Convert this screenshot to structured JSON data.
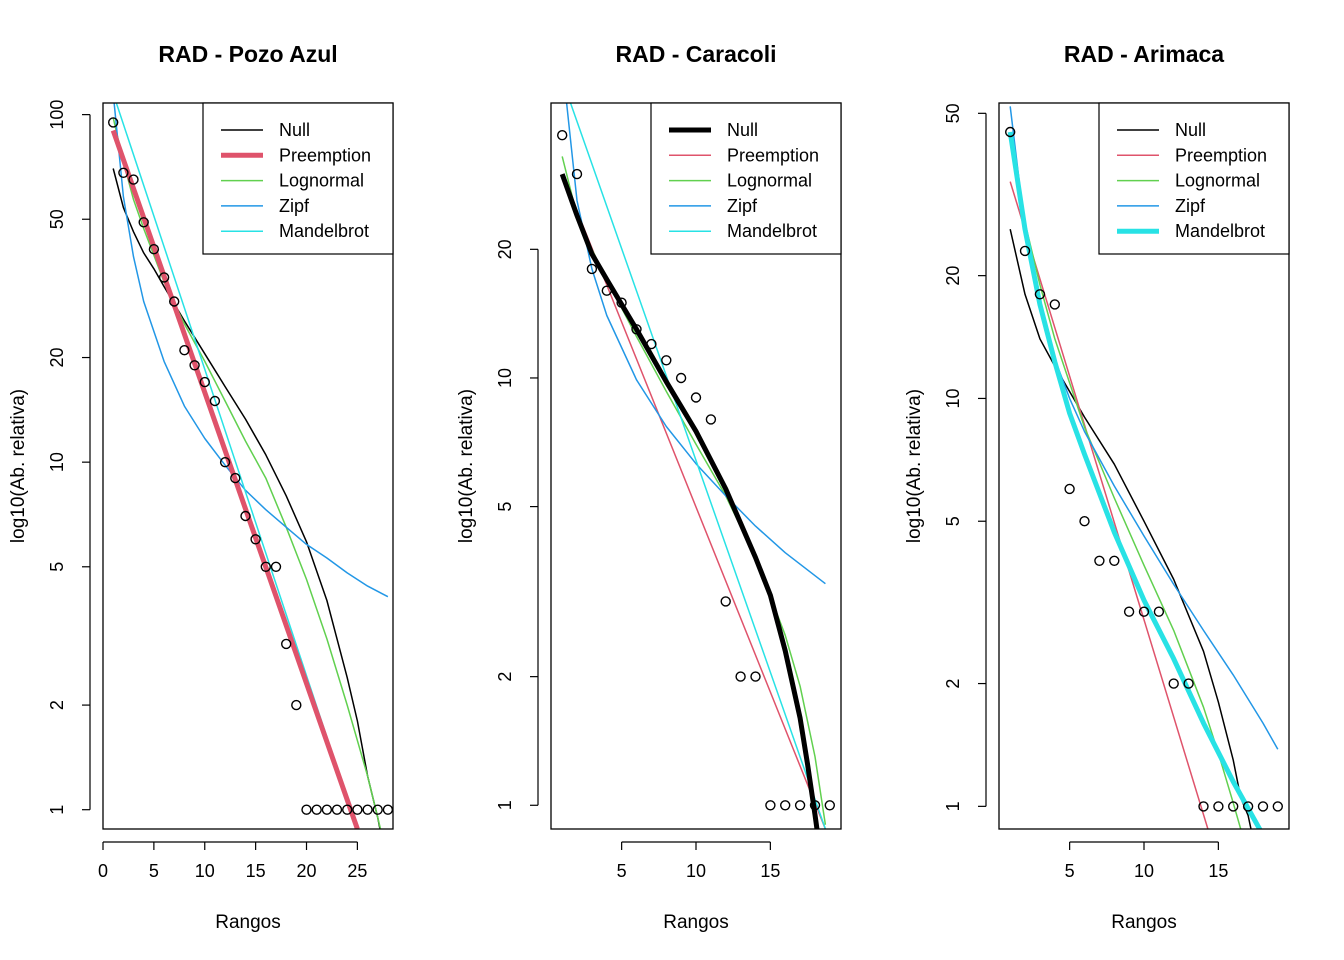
{
  "figure": {
    "legend_entries": [
      {
        "key": "null",
        "label": "Null",
        "color": "#000000"
      },
      {
        "key": "preemption",
        "label": "Preemption",
        "color": "#DF536B"
      },
      {
        "key": "lognormal",
        "label": "Lognormal",
        "color": "#61D04F"
      },
      {
        "key": "zipf",
        "label": "Zipf",
        "color": "#2297E6"
      },
      {
        "key": "mandelbrot",
        "label": "Mandelbrot",
        "color": "#28E2E5"
      }
    ],
    "point_style": "open-circle"
  },
  "chart_data": [
    {
      "type": "scatter",
      "title": "RAD - Pozo Azul",
      "xlabel": "Rangos",
      "ylabel": "log10(Ab. relativa)",
      "y_scale": "log",
      "xlim": [
        0,
        28.5
      ],
      "ylim": [
        0.88,
        108
      ],
      "xticks": [
        0,
        5,
        10,
        15,
        20,
        25
      ],
      "yticks": [
        1,
        2,
        5,
        10,
        20,
        50,
        100
      ],
      "legend_position": "top-right",
      "highlight": "preemption",
      "points": {
        "x": [
          1,
          2,
          3,
          4,
          5,
          6,
          7,
          8,
          9,
          10,
          11,
          12,
          13,
          14,
          15,
          16,
          17,
          18,
          19,
          20,
          21,
          22,
          23,
          24,
          25,
          26,
          27,
          28
        ],
        "y": [
          95,
          68,
          65,
          49,
          41,
          34,
          29,
          21,
          19,
          17,
          15,
          10,
          9,
          7,
          6,
          5,
          5,
          3,
          2,
          1,
          1,
          1,
          1,
          1,
          1,
          1,
          1,
          1
        ]
      },
      "curves": {
        "null": {
          "x": [
            1,
            2,
            3,
            4,
            5,
            6,
            8,
            10,
            12,
            14,
            16,
            18,
            20,
            22,
            24,
            25,
            26,
            27,
            27.5,
            28
          ],
          "y": [
            70,
            54,
            46,
            40,
            36,
            32,
            25.5,
            20.5,
            16.5,
            13.3,
            10.5,
            8,
            5.9,
            4,
            2.4,
            1.8,
            1.25,
            0.95,
            0.8,
            0.68
          ]
        },
        "preemption": {
          "x": [
            1,
            25
          ],
          "y": [
            90,
            0.88
          ]
        },
        "lognormal": {
          "x": [
            1,
            2,
            3,
            4,
            6,
            8,
            10,
            12,
            14,
            16,
            18,
            20,
            22,
            24,
            26,
            27,
            28
          ],
          "y": [
            98,
            73,
            57,
            47,
            33,
            25,
            19.5,
            15,
            11.5,
            9,
            6.5,
            4.6,
            3.1,
            2,
            1.25,
            0.95,
            0.72
          ]
        },
        "zipf": {
          "x": [
            1,
            2,
            3,
            4,
            6,
            8,
            10,
            12,
            14,
            16,
            18,
            20,
            22,
            24,
            26,
            28
          ],
          "y": [
            115,
            58,
            39,
            29,
            19.5,
            14.5,
            11.7,
            9.8,
            8.3,
            7.3,
            6.5,
            5.8,
            5.3,
            4.8,
            4.4,
            4.1
          ]
        },
        "mandelbrot": {
          "x": [
            1,
            25
          ],
          "y": [
            115,
            0.88
          ]
        }
      }
    },
    {
      "type": "scatter",
      "title": "RAD - Caracoli",
      "xlabel": "Rangos",
      "ylabel": "log10(Ab. relativa)",
      "y_scale": "log",
      "xlim": [
        0.25,
        19.75
      ],
      "ylim": [
        0.88,
        44
      ],
      "xticks": [
        5,
        10,
        15
      ],
      "yticks": [
        1,
        2,
        5,
        10,
        20
      ],
      "legend_position": "top-right",
      "highlight": "null",
      "points": {
        "x": [
          1,
          2,
          3,
          4,
          5,
          6,
          7,
          8,
          9,
          10,
          11,
          12,
          13,
          14,
          15,
          16,
          17,
          18,
          19
        ],
        "y": [
          37,
          30,
          18,
          16,
          15,
          13,
          12,
          11,
          10,
          9,
          8,
          3,
          2,
          2,
          1,
          1,
          1,
          1,
          1
        ]
      },
      "curves": {
        "null": {
          "x": [
            1,
            2,
            3,
            4,
            6,
            8,
            10,
            12,
            14,
            15,
            16,
            17,
            17.5,
            18,
            18.3,
            18.5
          ],
          "y": [
            30,
            24,
            19.5,
            17,
            13,
            9.8,
            7.5,
            5.5,
            3.8,
            3.1,
            2.3,
            1.6,
            1.25,
            0.95,
            0.8,
            0.68
          ]
        },
        "preemption": {
          "x": [
            1,
            18.7
          ],
          "y": [
            30,
            0.88
          ]
        },
        "lognormal": {
          "x": [
            1,
            2,
            3,
            4,
            6,
            8,
            10,
            12,
            14,
            16,
            17,
            18,
            18.7
          ],
          "y": [
            33,
            24,
            20,
            17,
            12.5,
            9.3,
            7,
            5.3,
            3.8,
            2.5,
            1.9,
            1.3,
            0.9
          ]
        },
        "zipf": {
          "x": [
            1,
            2,
            3,
            4,
            6,
            8,
            10,
            12,
            14,
            16,
            18.7
          ],
          "y": [
            55,
            26,
            18,
            14,
            9.9,
            7.7,
            6.3,
            5.3,
            4.5,
            3.9,
            3.3
          ]
        },
        "mandelbrot": {
          "x": [
            1,
            18.7
          ],
          "y": [
            50,
            0.88
          ]
        }
      }
    },
    {
      "type": "scatter",
      "title": "RAD - Arimaca",
      "xlabel": "Rangos",
      "ylabel": "log10(Ab. relativa)",
      "y_scale": "log",
      "xlim": [
        0.25,
        19.75
      ],
      "ylim": [
        0.88,
        53
      ],
      "xticks": [
        5,
        10,
        15
      ],
      "yticks": [
        1,
        2,
        5,
        10,
        20,
        50
      ],
      "legend_position": "top-right",
      "highlight": "mandelbrot",
      "points": {
        "x": [
          1,
          2,
          3,
          4,
          5,
          6,
          7,
          8,
          9,
          10,
          11,
          12,
          13,
          14,
          15,
          16,
          17,
          18,
          19
        ],
        "y": [
          45,
          23,
          18,
          17,
          6,
          5,
          4,
          4,
          3,
          3,
          3,
          2,
          2,
          1,
          1,
          1,
          1,
          1,
          1
        ]
      },
      "curves": {
        "null": {
          "x": [
            1,
            2,
            3,
            4,
            6,
            8,
            10,
            12,
            14,
            15,
            16,
            16.5,
            17,
            17.5,
            18
          ],
          "y": [
            26,
            18,
            14,
            12,
            9,
            6.9,
            5,
            3.6,
            2.4,
            1.8,
            1.3,
            1.05,
            0.95,
            0.78,
            0.66
          ]
        },
        "preemption": {
          "x": [
            1,
            14.3
          ],
          "y": [
            34,
            0.88
          ]
        },
        "lognormal": {
          "x": [
            1,
            2,
            3,
            4,
            6,
            8,
            10,
            12,
            14,
            15,
            16,
            16.5
          ],
          "y": [
            45,
            27,
            19,
            14,
            8.5,
            5.7,
            3.9,
            2.7,
            1.75,
            1.35,
            1.02,
            0.88
          ]
        },
        "zipf": {
          "x": [
            1,
            2,
            3,
            4,
            5,
            6,
            8,
            10,
            12,
            14,
            16,
            18,
            19
          ],
          "y": [
            52,
            26,
            17,
            12.5,
            10,
            8.3,
            6.1,
            4.6,
            3.5,
            2.7,
            2.1,
            1.6,
            1.38
          ]
        },
        "mandelbrot": {
          "x": [
            1,
            2,
            3,
            4,
            5,
            6,
            8,
            10,
            12,
            14,
            16,
            18
          ],
          "y": [
            45,
            26,
            17,
            12.3,
            9.2,
            7.3,
            4.7,
            3.2,
            2.3,
            1.6,
            1.15,
            0.85
          ]
        }
      }
    }
  ]
}
